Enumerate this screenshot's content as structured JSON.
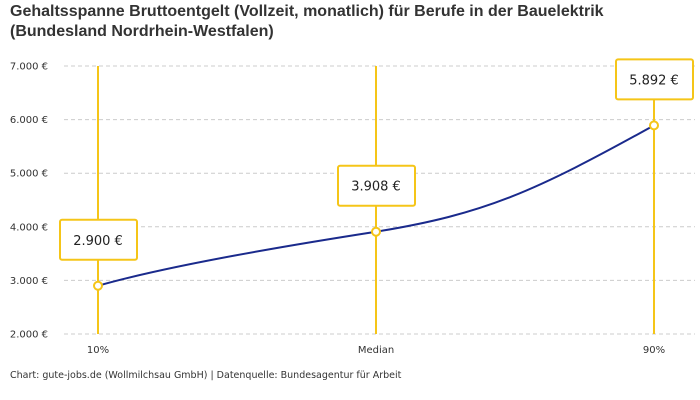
{
  "chart_data": {
    "type": "line",
    "title": "Gehaltsspanne Bruttoentgelt (Vollzeit, monatlich) für Berufe in der Bauelektrik (Bundesland Nordrhein-Westfalen)",
    "categories": [
      "10%",
      "Median",
      "90%"
    ],
    "values": [
      2900,
      3908,
      5892
    ],
    "data_labels": [
      "2.900 €",
      "3.908 €",
      "5.892 €"
    ],
    "ylim": [
      2000,
      7000
    ],
    "yticks": [
      2000,
      3000,
      4000,
      5000,
      6000,
      7000
    ],
    "ytick_labels": [
      "2.000 €",
      "3.000 €",
      "4.000 €",
      "5.000 €",
      "6.000 €",
      "7.000 €"
    ],
    "grid": "horizontal dashed",
    "legend": "none",
    "colors": {
      "line": "#1a2a8c",
      "marker": "#f5c518",
      "grid": "#cccccc"
    }
  },
  "footer": "Chart: gute-jobs.de (Wollmilchsau GmbH) | Datenquelle: Bundesagentur für Arbeit"
}
